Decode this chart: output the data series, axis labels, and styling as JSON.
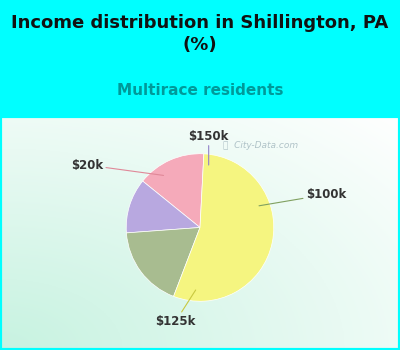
{
  "title": "Income distribution in Shillington, PA\n(%)",
  "subtitle": "Multirace residents",
  "title_fontsize": 13,
  "subtitle_fontsize": 11,
  "title_color": "#111111",
  "subtitle_color": "#009999",
  "labels": [
    "$20k",
    "$150k",
    "$100k",
    "$125k"
  ],
  "sizes": [
    15,
    12,
    18,
    55
  ],
  "colors": [
    "#f5aaba",
    "#b8a8e0",
    "#a8bc90",
    "#f5f580"
  ],
  "startangle": 87,
  "bg_top_color": "#00ffff",
  "watermark": "ⓘ  City-Data.com",
  "label_line_colors": [
    "#e08898",
    "#9080c8",
    "#80a060",
    "#c8c840"
  ],
  "label_text_color": "#333333",
  "label_fontsize": 8.5
}
